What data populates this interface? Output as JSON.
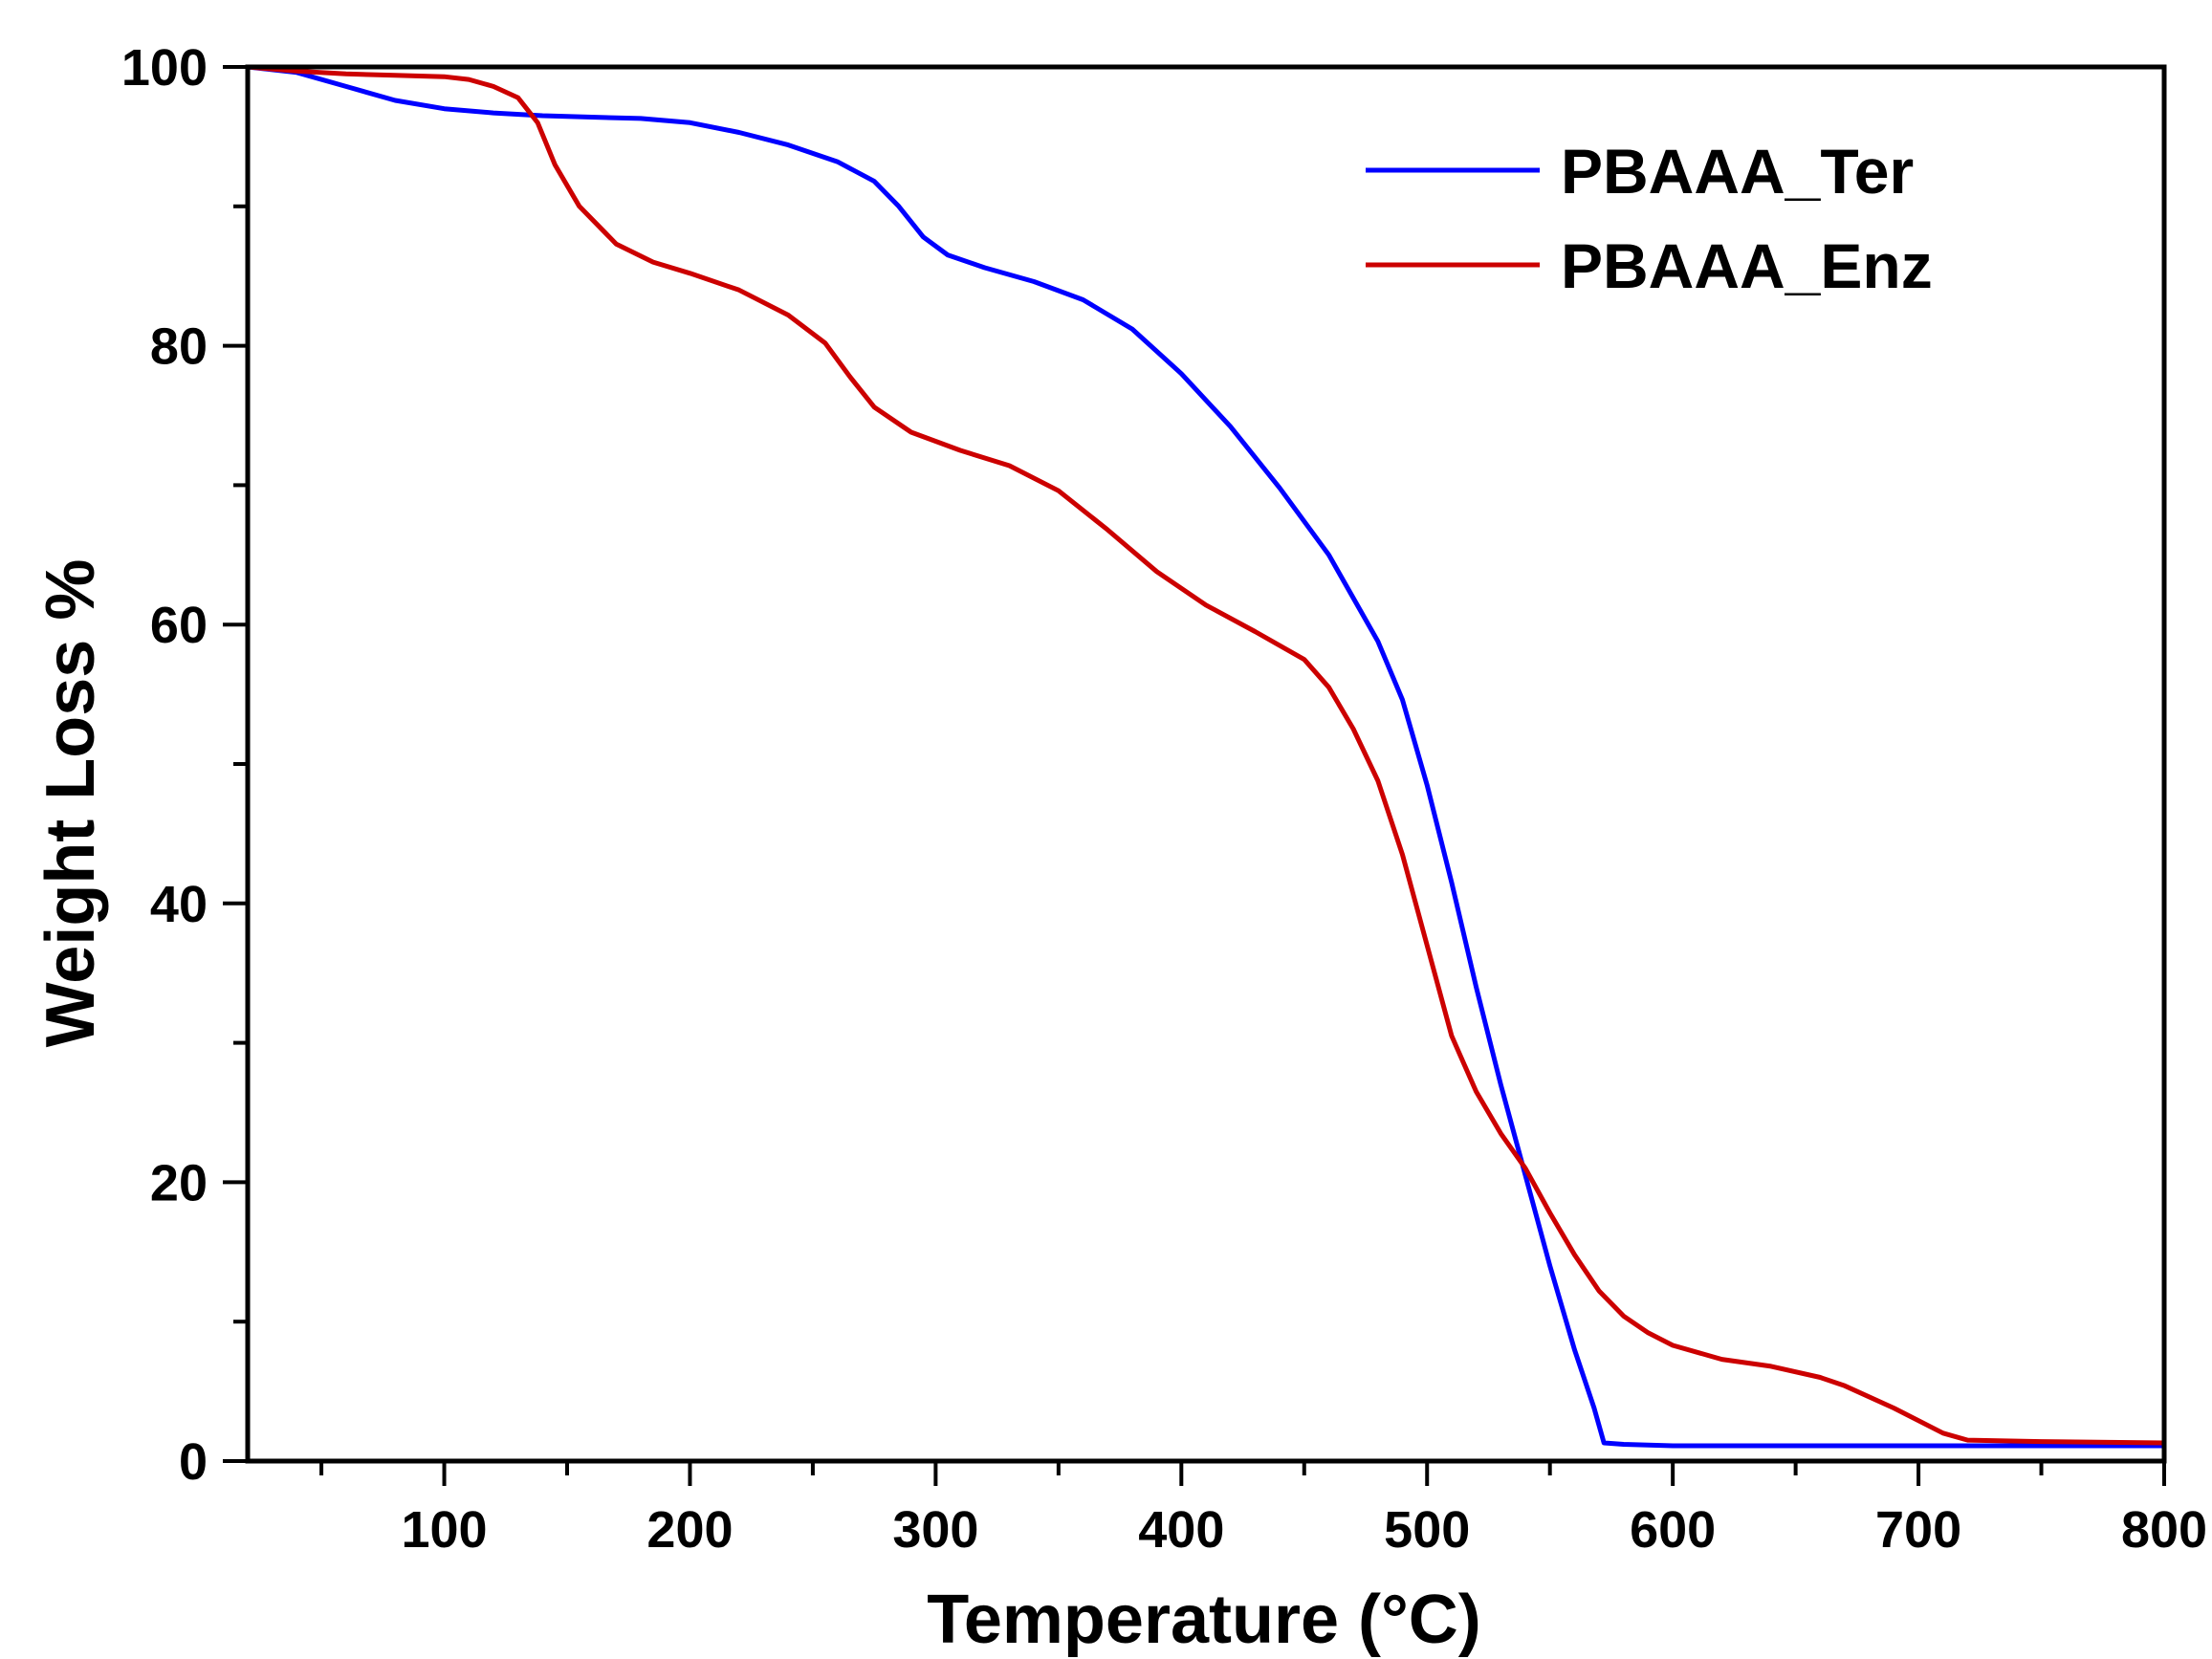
{
  "chart_data": {
    "type": "line",
    "title": "",
    "xlabel": "Temperature (°C)",
    "ylabel": "Weight Loss %",
    "xlim": [
      20,
      800
    ],
    "ylim": [
      0,
      100
    ],
    "x_major_ticks": [
      100,
      200,
      300,
      400,
      500,
      600,
      700,
      800
    ],
    "x_minor_ticks": [
      50,
      150,
      250,
      350,
      450,
      550,
      650,
      750
    ],
    "y_major_ticks": [
      0,
      20,
      40,
      60,
      80,
      100
    ],
    "y_minor_ticks": [
      10,
      30,
      50,
      70,
      90
    ],
    "x_tick_labels": [
      "100",
      "200",
      "300",
      "400",
      "500",
      "600",
      "700",
      "800"
    ],
    "y_tick_labels": [
      "0",
      "20",
      "40",
      "60",
      "80",
      "100"
    ],
    "legend_position": "top-right",
    "grid": false,
    "series": [
      {
        "name": "PBAAA_Ter",
        "color": "#0000ff",
        "points": [
          [
            20,
            100
          ],
          [
            40,
            99.6
          ],
          [
            60,
            98.6
          ],
          [
            80,
            97.6
          ],
          [
            100,
            97.0
          ],
          [
            120,
            96.7
          ],
          [
            140,
            96.5
          ],
          [
            160,
            96.4
          ],
          [
            180,
            96.3
          ],
          [
            200,
            96.0
          ],
          [
            220,
            95.3
          ],
          [
            240,
            94.4
          ],
          [
            260,
            93.2
          ],
          [
            275,
            91.8
          ],
          [
            285,
            90.0
          ],
          [
            295,
            87.8
          ],
          [
            305,
            86.5
          ],
          [
            320,
            85.6
          ],
          [
            340,
            84.6
          ],
          [
            360,
            83.3
          ],
          [
            380,
            81.2
          ],
          [
            400,
            78.0
          ],
          [
            420,
            74.2
          ],
          [
            440,
            69.8
          ],
          [
            460,
            65.0
          ],
          [
            480,
            58.8
          ],
          [
            490,
            54.6
          ],
          [
            500,
            48.5
          ],
          [
            510,
            41.5
          ],
          [
            520,
            34.0
          ],
          [
            530,
            27.0
          ],
          [
            540,
            20.5
          ],
          [
            550,
            14.0
          ],
          [
            560,
            8.0
          ],
          [
            568,
            3.8
          ],
          [
            572,
            1.3
          ],
          [
            580,
            1.2
          ],
          [
            600,
            1.1
          ],
          [
            700,
            1.1
          ],
          [
            800,
            1.1
          ]
        ]
      },
      {
        "name": "PBAAA_Enz",
        "color": "#cc0000",
        "points": [
          [
            20,
            100
          ],
          [
            40,
            99.7
          ],
          [
            60,
            99.5
          ],
          [
            80,
            99.4
          ],
          [
            100,
            99.3
          ],
          [
            110,
            99.1
          ],
          [
            120,
            98.6
          ],
          [
            130,
            97.8
          ],
          [
            138,
            96.0
          ],
          [
            145,
            93.0
          ],
          [
            155,
            90.0
          ],
          [
            170,
            87.3
          ],
          [
            185,
            86.0
          ],
          [
            200,
            85.2
          ],
          [
            220,
            84.0
          ],
          [
            240,
            82.2
          ],
          [
            255,
            80.2
          ],
          [
            265,
            77.8
          ],
          [
            275,
            75.6
          ],
          [
            290,
            73.8
          ],
          [
            310,
            72.5
          ],
          [
            330,
            71.4
          ],
          [
            350,
            69.6
          ],
          [
            370,
            66.8
          ],
          [
            390,
            63.8
          ],
          [
            410,
            61.4
          ],
          [
            430,
            59.5
          ],
          [
            450,
            57.5
          ],
          [
            460,
            55.5
          ],
          [
            470,
            52.5
          ],
          [
            480,
            48.8
          ],
          [
            490,
            43.5
          ],
          [
            500,
            37.0
          ],
          [
            510,
            30.5
          ],
          [
            520,
            26.5
          ],
          [
            530,
            23.5
          ],
          [
            540,
            21.0
          ],
          [
            550,
            17.8
          ],
          [
            560,
            14.8
          ],
          [
            570,
            12.2
          ],
          [
            580,
            10.4
          ],
          [
            590,
            9.2
          ],
          [
            600,
            8.3
          ],
          [
            620,
            7.3
          ],
          [
            640,
            6.8
          ],
          [
            660,
            6.0
          ],
          [
            670,
            5.4
          ],
          [
            690,
            3.8
          ],
          [
            710,
            2.0
          ],
          [
            720,
            1.5
          ],
          [
            750,
            1.4
          ],
          [
            800,
            1.3
          ]
        ]
      }
    ]
  }
}
